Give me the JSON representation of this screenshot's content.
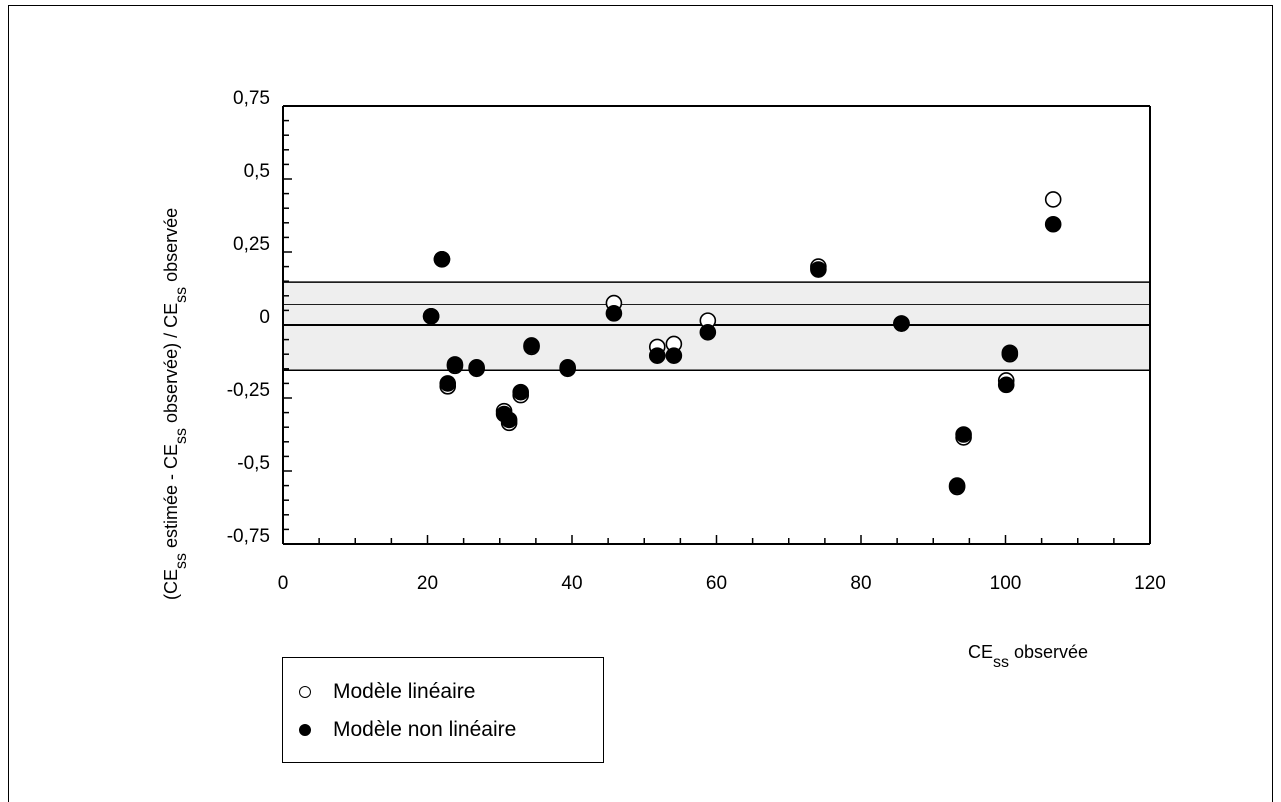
{
  "chart_data": {
    "type": "scatter",
    "xlabel": {
      "base": "CE",
      "sub": "ss",
      "rest": " observée"
    },
    "ylabel": {
      "p1": "(CE",
      "s1": "ss",
      "p2": " estimée - CE",
      "s2": "ss",
      "p3": " observée) / CE",
      "s3": "ss",
      "p4": " observée"
    },
    "xlim": [
      0,
      120
    ],
    "ylim": [
      -0.75,
      0.75
    ],
    "x_ticks": [
      0,
      20,
      40,
      60,
      80,
      100,
      120
    ],
    "x_tick_labels": [
      "0",
      "20",
      "40",
      "60",
      "80",
      "100",
      "120"
    ],
    "y_ticks": [
      0.75,
      0.5,
      0.25,
      0,
      -0.25,
      -0.5,
      -0.75
    ],
    "y_tick_labels": [
      "0,75",
      "0,5",
      "0,25",
      "0",
      "-0,25",
      "-0,5",
      "-0,75"
    ],
    "grid": false,
    "reference_lines": {
      "zero": 0,
      "mean": 0.07,
      "upper": 0.147,
      "lower": -0.155,
      "band_color": "#eeeeee"
    },
    "series": [
      {
        "name": "Modèle linéaire",
        "marker": "open-circle",
        "points": [
          [
            20.5,
            0.03
          ],
          [
            22,
            0.225
          ],
          [
            22.8,
            -0.21
          ],
          [
            23.8,
            -0.14
          ],
          [
            26.8,
            -0.15
          ],
          [
            30.6,
            -0.295
          ],
          [
            31.3,
            -0.335
          ],
          [
            32.9,
            -0.24
          ],
          [
            34.4,
            -0.075
          ],
          [
            39.4,
            -0.15
          ],
          [
            45.8,
            0.075
          ],
          [
            51.8,
            -0.075
          ],
          [
            54.1,
            -0.065
          ],
          [
            58.8,
            0.015
          ],
          [
            74.1,
            0.2
          ],
          [
            85.6,
            0.005
          ],
          [
            93.3,
            -0.555
          ],
          [
            94.2,
            -0.385
          ],
          [
            100.1,
            -0.19
          ],
          [
            100.6,
            -0.1
          ],
          [
            106.6,
            0.43
          ]
        ]
      },
      {
        "name": "Modèle non linéaire",
        "marker": "filled-circle",
        "points": [
          [
            20.5,
            0.03
          ],
          [
            22,
            0.225
          ],
          [
            22.8,
            -0.2
          ],
          [
            23.8,
            -0.135
          ],
          [
            26.8,
            -0.145
          ],
          [
            30.6,
            -0.305
          ],
          [
            31.3,
            -0.325
          ],
          [
            32.9,
            -0.23
          ],
          [
            34.4,
            -0.07
          ],
          [
            39.4,
            -0.145
          ],
          [
            45.8,
            0.04
          ],
          [
            51.8,
            -0.105
          ],
          [
            54.1,
            -0.105
          ],
          [
            58.8,
            -0.025
          ],
          [
            74.1,
            0.19
          ],
          [
            85.6,
            0.005
          ],
          [
            93.3,
            -0.55
          ],
          [
            94.2,
            -0.375
          ],
          [
            100.1,
            -0.205
          ],
          [
            100.6,
            -0.095
          ],
          [
            106.6,
            0.345
          ]
        ]
      }
    ]
  },
  "legend": {
    "items": [
      {
        "label": "Modèle linéaire"
      },
      {
        "label": "Modèle non linéaire"
      }
    ]
  }
}
